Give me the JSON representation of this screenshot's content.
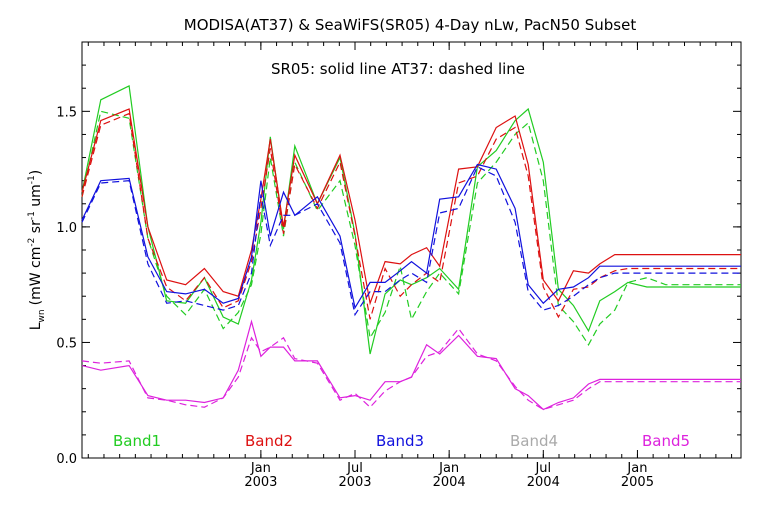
{
  "chart_data": {
    "type": "line",
    "title": "MODISA(AT37) & SeaWiFS(SR05) 4-Day nLw, PacN50 Subset",
    "note": "SR05: solid line   AT37: dashed line",
    "ylabel_main": "L",
    "ylabel_sub": "wn",
    "ylabel_units_pre": "(mW cm",
    "ylabel_sup1": "-2",
    "ylabel_mid": " sr",
    "ylabel_sup2": "-1",
    "ylabel_mid2": " um",
    "ylabel_sup3": "-1",
    "ylabel_close": ")",
    "ylim": [
      0.0,
      1.8
    ],
    "yticks": [
      "0.0",
      "0.5",
      "1.0",
      "1.5"
    ],
    "ytick_values": [
      0.0,
      0.5,
      1.0,
      1.5
    ],
    "xlim": [
      2002.05,
      2005.55
    ],
    "xticks": [
      {
        "x": 2003.0,
        "month": "Jan",
        "year": "2003"
      },
      {
        "x": 2003.5,
        "month": "Jul",
        "year": "2003"
      },
      {
        "x": 2004.0,
        "month": "Jan",
        "year": "2004"
      },
      {
        "x": 2004.5,
        "month": "Jul",
        "year": "2004"
      },
      {
        "x": 2005.0,
        "month": "Jan",
        "year": "2005"
      }
    ],
    "legend": [
      {
        "name": "Band1",
        "color": "#22cc22"
      },
      {
        "name": "Band2",
        "color": "#dd1111"
      },
      {
        "name": "Band3",
        "color": "#1111dd"
      },
      {
        "name": "Band4",
        "color": "#aaaaaa"
      },
      {
        "name": "Band5",
        "color": "#dd22dd"
      }
    ],
    "series": [
      {
        "color": "#22cc22",
        "dash": false,
        "x": [
          2002.05,
          2002.15,
          2002.3,
          2002.4,
          2002.5,
          2002.6,
          2002.7,
          2002.8,
          2002.88,
          2002.95,
          2003.0,
          2003.05,
          2003.12,
          2003.18,
          2003.3,
          2003.42,
          2003.5,
          2003.58,
          2003.66,
          2003.74,
          2003.8,
          2003.88,
          2003.95,
          2004.05,
          2004.15,
          2004.25,
          2004.35,
          2004.42,
          2004.5,
          2004.58,
          2004.66,
          2004.74,
          2004.8,
          2004.88,
          2004.95,
          2005.05,
          2005.15,
          2005.3,
          2005.42,
          2005.55
        ],
        "y": [
          1.15,
          1.55,
          1.61,
          1.0,
          0.68,
          0.67,
          0.78,
          0.61,
          0.58,
          0.77,
          1.02,
          1.39,
          0.99,
          1.35,
          1.1,
          1.3,
          0.97,
          0.45,
          0.71,
          0.77,
          0.75,
          0.78,
          0.82,
          0.73,
          1.26,
          1.33,
          1.46,
          1.51,
          1.28,
          0.73,
          0.66,
          0.55,
          0.68,
          0.72,
          0.76,
          0.74,
          0.74,
          0.74,
          0.74,
          0.74
        ]
      },
      {
        "color": "#22cc22",
        "dash": true,
        "x": [
          2002.05,
          2002.15,
          2002.3,
          2002.4,
          2002.5,
          2002.6,
          2002.7,
          2002.8,
          2002.88,
          2002.95,
          2003.0,
          2003.05,
          2003.12,
          2003.18,
          2003.3,
          2003.42,
          2003.5,
          2003.58,
          2003.66,
          2003.74,
          2003.8,
          2003.88,
          2003.95,
          2004.05,
          2004.15,
          2004.25,
          2004.35,
          2004.42,
          2004.5,
          2004.58,
          2004.66,
          2004.74,
          2004.8,
          2004.88,
          2004.95,
          2005.05,
          2005.15,
          2005.3,
          2005.42,
          2005.55
        ],
        "y": [
          1.13,
          1.5,
          1.47,
          0.95,
          0.7,
          0.62,
          0.73,
          0.56,
          0.63,
          0.75,
          0.97,
          1.3,
          0.96,
          1.28,
          1.07,
          1.2,
          0.92,
          0.52,
          0.63,
          0.83,
          0.6,
          0.72,
          0.8,
          0.71,
          1.19,
          1.28,
          1.4,
          1.45,
          1.2,
          0.66,
          0.59,
          0.49,
          0.58,
          0.64,
          0.76,
          0.78,
          0.75,
          0.75,
          0.75,
          0.75
        ]
      },
      {
        "color": "#dd1111",
        "dash": false,
        "x": [
          2002.05,
          2002.15,
          2002.3,
          2002.4,
          2002.5,
          2002.6,
          2002.7,
          2002.8,
          2002.88,
          2002.95,
          2003.0,
          2003.05,
          2003.12,
          2003.18,
          2003.3,
          2003.42,
          2003.5,
          2003.58,
          2003.66,
          2003.74,
          2003.8,
          2003.88,
          2003.95,
          2004.05,
          2004.15,
          2004.25,
          2004.35,
          2004.42,
          2004.5,
          2004.58,
          2004.66,
          2004.74,
          2004.8,
          2004.88,
          2004.95,
          2005.05,
          2005.15,
          2005.3,
          2005.42,
          2005.55
        ],
        "y": [
          1.15,
          1.46,
          1.51,
          1.0,
          0.77,
          0.75,
          0.82,
          0.72,
          0.7,
          0.9,
          1.12,
          1.38,
          1.0,
          1.31,
          1.1,
          1.31,
          1.03,
          0.67,
          0.85,
          0.84,
          0.88,
          0.91,
          0.83,
          1.25,
          1.26,
          1.43,
          1.48,
          1.27,
          0.77,
          0.68,
          0.81,
          0.8,
          0.84,
          0.88,
          0.88,
          0.88,
          0.88,
          0.88,
          0.88,
          0.88
        ]
      },
      {
        "color": "#dd1111",
        "dash": true,
        "x": [
          2002.05,
          2002.15,
          2002.3,
          2002.4,
          2002.5,
          2002.6,
          2002.7,
          2002.8,
          2002.88,
          2002.95,
          2003.0,
          2003.05,
          2003.12,
          2003.18,
          2003.3,
          2003.42,
          2003.5,
          2003.58,
          2003.66,
          2003.74,
          2003.8,
          2003.88,
          2003.95,
          2004.05,
          2004.15,
          2004.25,
          2004.35,
          2004.42,
          2004.5,
          2004.58,
          2004.66,
          2004.74,
          2004.8,
          2004.88,
          2004.95,
          2005.05,
          2005.15,
          2005.3,
          2005.42,
          2005.55
        ],
        "y": [
          1.13,
          1.44,
          1.49,
          0.95,
          0.74,
          0.68,
          0.78,
          0.65,
          0.68,
          0.85,
          1.08,
          1.34,
          0.97,
          1.27,
          1.08,
          1.28,
          0.96,
          0.6,
          0.82,
          0.7,
          0.75,
          0.8,
          0.76,
          1.19,
          1.22,
          1.38,
          1.43,
          1.22,
          0.74,
          0.61,
          0.73,
          0.74,
          0.78,
          0.81,
          0.82,
          0.82,
          0.82,
          0.82,
          0.82,
          0.82
        ]
      },
      {
        "color": "#1111dd",
        "dash": false,
        "x": [
          2002.05,
          2002.15,
          2002.3,
          2002.4,
          2002.5,
          2002.6,
          2002.7,
          2002.8,
          2002.88,
          2002.95,
          2003.0,
          2003.05,
          2003.12,
          2003.18,
          2003.3,
          2003.42,
          2003.5,
          2003.58,
          2003.66,
          2003.74,
          2003.8,
          2003.88,
          2003.95,
          2004.05,
          2004.15,
          2004.25,
          2004.35,
          2004.42,
          2004.5,
          2004.58,
          2004.66,
          2004.74,
          2004.8,
          2004.88,
          2004.95,
          2005.05,
          2005.15,
          2005.3,
          2005.42,
          2005.55
        ],
        "y": [
          1.03,
          1.2,
          1.21,
          0.87,
          0.72,
          0.71,
          0.73,
          0.67,
          0.69,
          0.87,
          1.2,
          0.96,
          1.15,
          1.05,
          1.13,
          0.96,
          0.65,
          0.76,
          0.76,
          0.81,
          0.85,
          0.8,
          1.12,
          1.13,
          1.27,
          1.25,
          1.08,
          0.75,
          0.67,
          0.73,
          0.74,
          0.78,
          0.83,
          0.83,
          0.83,
          0.83,
          0.83,
          0.83,
          0.83,
          0.83
        ]
      },
      {
        "color": "#1111dd",
        "dash": true,
        "x": [
          2002.05,
          2002.15,
          2002.3,
          2002.4,
          2002.5,
          2002.6,
          2002.7,
          2002.8,
          2002.88,
          2002.95,
          2003.0,
          2003.05,
          2003.12,
          2003.18,
          2003.3,
          2003.42,
          2003.5,
          2003.58,
          2003.66,
          2003.74,
          2003.8,
          2003.88,
          2003.95,
          2004.05,
          2004.15,
          2004.25,
          2004.35,
          2004.42,
          2004.5,
          2004.58,
          2004.66,
          2004.74,
          2004.8,
          2004.88,
          2004.95,
          2005.05,
          2005.15,
          2005.3,
          2005.42,
          2005.55
        ],
        "y": [
          1.02,
          1.19,
          1.2,
          0.84,
          0.67,
          0.68,
          0.66,
          0.64,
          0.66,
          0.8,
          1.14,
          0.92,
          1.05,
          1.05,
          1.1,
          0.93,
          0.62,
          0.72,
          0.72,
          0.77,
          0.8,
          0.76,
          1.06,
          1.08,
          1.26,
          1.22,
          1.02,
          0.72,
          0.64,
          0.66,
          0.7,
          0.75,
          0.78,
          0.8,
          0.8,
          0.8,
          0.8,
          0.8,
          0.8,
          0.8
        ]
      },
      {
        "color": "#dd22dd",
        "dash": false,
        "x": [
          2002.05,
          2002.15,
          2002.3,
          2002.4,
          2002.5,
          2002.6,
          2002.7,
          2002.8,
          2002.88,
          2002.95,
          2003.0,
          2003.05,
          2003.12,
          2003.18,
          2003.3,
          2003.42,
          2003.5,
          2003.58,
          2003.66,
          2003.74,
          2003.8,
          2003.88,
          2003.95,
          2004.05,
          2004.15,
          2004.25,
          2004.35,
          2004.42,
          2004.5,
          2004.58,
          2004.66,
          2004.74,
          2004.8,
          2004.88,
          2004.95,
          2005.05,
          2005.15,
          2005.3,
          2005.42,
          2005.55
        ],
        "y": [
          0.4,
          0.38,
          0.4,
          0.27,
          0.25,
          0.25,
          0.24,
          0.26,
          0.38,
          0.59,
          0.44,
          0.48,
          0.48,
          0.42,
          0.42,
          0.26,
          0.27,
          0.25,
          0.33,
          0.33,
          0.35,
          0.49,
          0.45,
          0.53,
          0.44,
          0.43,
          0.3,
          0.27,
          0.21,
          0.24,
          0.26,
          0.32,
          0.34,
          0.34,
          0.34,
          0.34,
          0.34,
          0.34,
          0.34,
          0.34
        ]
      },
      {
        "color": "#dd22dd",
        "dash": true,
        "x": [
          2002.05,
          2002.15,
          2002.3,
          2002.4,
          2002.5,
          2002.6,
          2002.7,
          2002.8,
          2002.88,
          2002.95,
          2003.0,
          2003.05,
          2003.12,
          2003.18,
          2003.3,
          2003.42,
          2003.5,
          2003.58,
          2003.66,
          2003.74,
          2003.8,
          2003.88,
          2003.95,
          2004.05,
          2004.15,
          2004.25,
          2004.35,
          2004.42,
          2004.5,
          2004.58,
          2004.66,
          2004.74,
          2004.8,
          2004.88,
          2004.95,
          2005.05,
          2005.15,
          2005.3,
          2005.42,
          2005.55
        ],
        "y": [
          0.42,
          0.41,
          0.42,
          0.26,
          0.25,
          0.23,
          0.22,
          0.26,
          0.35,
          0.52,
          0.46,
          0.48,
          0.52,
          0.43,
          0.41,
          0.25,
          0.28,
          0.22,
          0.29,
          0.33,
          0.35,
          0.44,
          0.46,
          0.56,
          0.45,
          0.42,
          0.31,
          0.25,
          0.21,
          0.23,
          0.25,
          0.3,
          0.33,
          0.33,
          0.33,
          0.33,
          0.33,
          0.33,
          0.33,
          0.33
        ]
      }
    ]
  }
}
